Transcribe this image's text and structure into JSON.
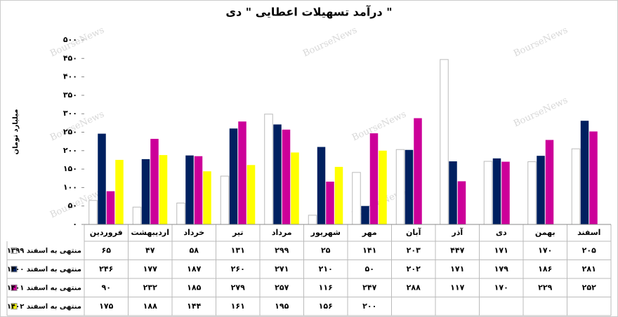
{
  "chart_data": {
    "type": "bar",
    "title": "درآمد تسهیلات اعطایی \" دی \"",
    "y_label": "میلیارد تومان",
    "watermark": "BourseNews",
    "categories": [
      "فروردین",
      "اردیبهشت",
      "خرداد",
      "تیر",
      "مرداد",
      "شهریور",
      "مهر",
      "آبان",
      "آذر",
      "دی",
      "بهمن",
      "اسفند"
    ],
    "series": [
      {
        "name": "منتهی به اسفند ۱۳۹۹",
        "color": "#ffffff",
        "values": [
          65,
          47,
          58,
          131,
          299,
          25,
          141,
          203,
          447,
          171,
          170,
          205
        ],
        "value_labels": [
          "۶۵",
          "۴۷",
          "۵۸",
          "۱۳۱",
          "۲۹۹",
          "۲۵",
          "۱۴۱",
          "۲۰۳",
          "۴۴۷",
          "۱۷۱",
          "۱۷۰",
          "۲۰۵"
        ]
      },
      {
        "name": "منتهی به اسفند ۱۴۰۰",
        "color": "#002060",
        "values": [
          246,
          177,
          187,
          260,
          271,
          210,
          50,
          202,
          171,
          179,
          186,
          281
        ],
        "value_labels": [
          "۲۴۶",
          "۱۷۷",
          "۱۸۷",
          "۲۶۰",
          "۲۷۱",
          "۲۱۰",
          "۵۰",
          "۲۰۲",
          "۱۷۱",
          "۱۷۹",
          "۱۸۶",
          "۲۸۱"
        ]
      },
      {
        "name": "منتهی به اسفند ۱۴۰۱",
        "color": "#cc0099",
        "values": [
          90,
          232,
          185,
          279,
          257,
          116,
          247,
          288,
          117,
          170,
          229,
          252
        ],
        "value_labels": [
          "۹۰",
          "۲۳۲",
          "۱۸۵",
          "۲۷۹",
          "۲۵۷",
          "۱۱۶",
          "۲۴۷",
          "۲۸۸",
          "۱۱۷",
          "۱۷۰",
          "۲۲۹",
          "۲۵۲"
        ]
      },
      {
        "name": "منتهی به اسفند ۱۴۰۲",
        "color": "#ffff00",
        "values": [
          175,
          188,
          144,
          161,
          195,
          156,
          200,
          null,
          null,
          null,
          null,
          null
        ],
        "value_labels": [
          "۱۷۵",
          "۱۸۸",
          "۱۴۴",
          "۱۶۱",
          "۱۹۵",
          "۱۵۶",
          "۲۰۰",
          null,
          null,
          null,
          null,
          null
        ]
      }
    ],
    "ylim": [
      0,
      500
    ],
    "yticks": [
      {
        "value": 0,
        "label": "۰"
      },
      {
        "value": 50,
        "label": "۵۰"
      },
      {
        "value": 100,
        "label": "۱۰۰"
      },
      {
        "value": 150,
        "label": "۱۵۰"
      },
      {
        "value": 200,
        "label": "۲۰۰"
      },
      {
        "value": 250,
        "label": "۲۵۰"
      },
      {
        "value": 300,
        "label": "۳۰۰"
      },
      {
        "value": 350,
        "label": "۳۵۰"
      },
      {
        "value": 400,
        "label": "۴۰۰"
      },
      {
        "value": 450,
        "label": "۴۵۰"
      },
      {
        "value": 500,
        "label": "۵۰۰"
      }
    ],
    "grid": false
  }
}
